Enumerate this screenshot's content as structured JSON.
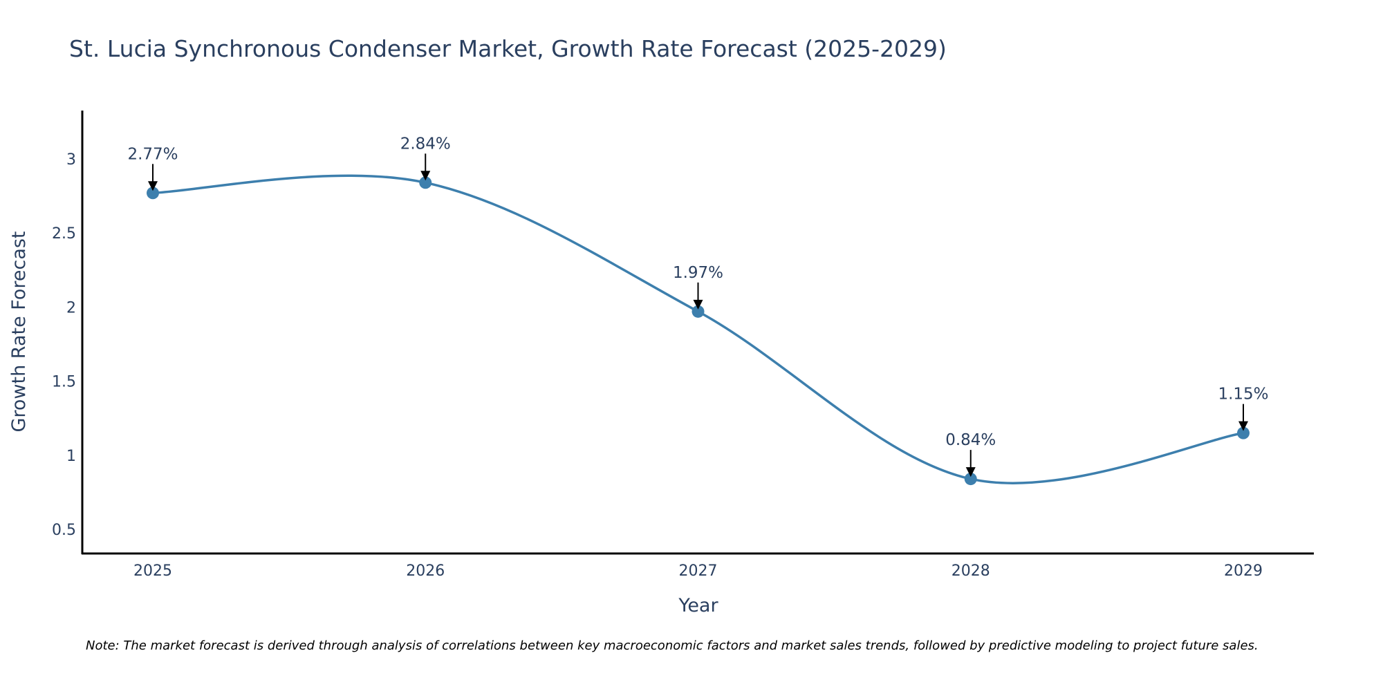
{
  "chart_data": {
    "type": "line",
    "title": "St. Lucia Synchronous Condenser Market, Growth Rate Forecast (2025-2029)",
    "xlabel": "Year",
    "ylabel": "Growth Rate Forecast",
    "x": [
      2025,
      2026,
      2027,
      2028,
      2029
    ],
    "x_tick_labels": [
      "2025",
      "2026",
      "2027",
      "2028",
      "2029"
    ],
    "y_ticks": [
      0.5,
      1,
      1.5,
      2,
      2.5,
      3
    ],
    "y_tick_labels": [
      "0.5",
      "1",
      "1.5",
      "2",
      "2.5",
      "3"
    ],
    "ylim": [
      0.33,
      3.33
    ],
    "xlim": [
      2024.74,
      2029.26
    ],
    "grid": false,
    "legend": "none",
    "series": [
      {
        "name": "Growth Rate Forecast",
        "values": [
          2.77,
          2.84,
          1.97,
          0.84,
          1.15
        ],
        "color": "#3d7fad",
        "line_shape": "spline",
        "markers": true
      }
    ],
    "annotations": [
      "2.77%",
      "2.84%",
      "1.97%",
      "0.84%",
      "1.15%"
    ],
    "note": "Note: The market forecast is derived through analysis of correlations between key macroeconomic factors and market sales trends, followed by predictive modeling to project future sales."
  }
}
